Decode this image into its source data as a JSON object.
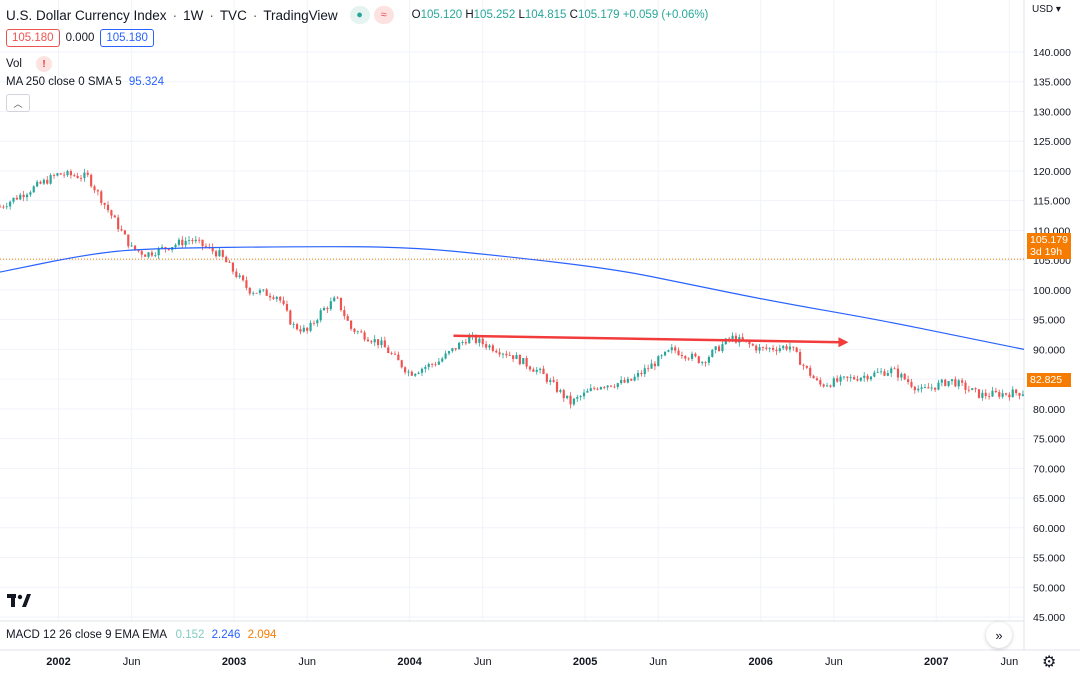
{
  "header": {
    "title": "U.S. Dollar Currency Index",
    "interval": "1W",
    "source": "TVC",
    "platform": "TradingView",
    "ohlc": {
      "open_key": "O",
      "open": "105.120",
      "high_key": "H",
      "high": "105.252",
      "low_key": "L",
      "low": "104.815",
      "close_key": "C",
      "close": "105.179",
      "change": "+0.059 (+0.06%)"
    },
    "sell_price": "105.180",
    "spread": "0.000",
    "buy_price": "105.180"
  },
  "indicators": {
    "vol_label": "Vol",
    "vol_warning": "!",
    "ma_label": "MA 250 close 0 SMA 5",
    "ma_value": "95.324",
    "macd_label": "MACD 12 26 close 9 EMA EMA",
    "macd_hist": "0.152",
    "macd_line": "2.246",
    "macd_signal": "2.094"
  },
  "axis": {
    "currency": "USD",
    "y_ticks": [
      "45.000",
      "50.000",
      "55.000",
      "60.000",
      "65.000",
      "70.000",
      "75.000",
      "80.000",
      "85.000",
      "90.000",
      "95.000",
      "100.000",
      "105.000",
      "110.000",
      "115.000",
      "120.000",
      "125.000",
      "130.000",
      "135.000",
      "140.000"
    ],
    "x_labels": [
      "2002",
      "Jun",
      "2003",
      "Jun",
      "2004",
      "Jun",
      "2005",
      "Jun",
      "2006",
      "Jun",
      "2007",
      "Jun"
    ],
    "current_price_label": "105.179",
    "countdown": "3d 19h",
    "ma_price_label": "82.825"
  },
  "colors": {
    "up": "#26a69a",
    "down": "#ef5350",
    "ma_line": "#2962ff",
    "arrow": "#f23b3b",
    "last_price": "#f57c00"
  },
  "chart_data": {
    "type": "candlestick",
    "title": "U.S. Dollar Currency Index",
    "interval": "1W",
    "ylim": [
      45,
      140
    ],
    "x_range": [
      "2001-09",
      "2007-07"
    ],
    "anchors": [
      {
        "t": "2001-09",
        "close": 114
      },
      {
        "t": "2002-01",
        "close": 119.5
      },
      {
        "t": "2002-03",
        "close": 119
      },
      {
        "t": "2002-04",
        "close": 115
      },
      {
        "t": "2002-06",
        "close": 107
      },
      {
        "t": "2002-07",
        "close": 106
      },
      {
        "t": "2002-10",
        "close": 108.5
      },
      {
        "t": "2002-12",
        "close": 106
      },
      {
        "t": "2003-02",
        "close": 100
      },
      {
        "t": "2003-04",
        "close": 99
      },
      {
        "t": "2003-05",
        "close": 94
      },
      {
        "t": "2003-06",
        "close": 93
      },
      {
        "t": "2003-07",
        "close": 96.5
      },
      {
        "t": "2003-08",
        "close": 98.5
      },
      {
        "t": "2003-09",
        "close": 93.5
      },
      {
        "t": "2003-11",
        "close": 91
      },
      {
        "t": "2004-01",
        "close": 86
      },
      {
        "t": "2004-03",
        "close": 88
      },
      {
        "t": "2004-05",
        "close": 92
      },
      {
        "t": "2004-08",
        "close": 89
      },
      {
        "t": "2004-10",
        "close": 86
      },
      {
        "t": "2004-12",
        "close": 81
      },
      {
        "t": "2005-02",
        "close": 84
      },
      {
        "t": "2005-04",
        "close": 84.5
      },
      {
        "t": "2005-07",
        "close": 90
      },
      {
        "t": "2005-09",
        "close": 88
      },
      {
        "t": "2005-11",
        "close": 92
      },
      {
        "t": "2006-01",
        "close": 90
      },
      {
        "t": "2006-03",
        "close": 90.5
      },
      {
        "t": "2006-04",
        "close": 87
      },
      {
        "t": "2006-05",
        "close": 84
      },
      {
        "t": "2006-08",
        "close": 85.5
      },
      {
        "t": "2006-10",
        "close": 86.5
      },
      {
        "t": "2006-12",
        "close": 83
      },
      {
        "t": "2007-02",
        "close": 84.8
      },
      {
        "t": "2007-04",
        "close": 82.3
      },
      {
        "t": "2007-07",
        "close": 82.8
      }
    ],
    "ma_series": {
      "name": "MA 250 close 0 SMA 5",
      "points": [
        {
          "t": "2001-09",
          "v": 103
        },
        {
          "t": "2002-03",
          "v": 106
        },
        {
          "t": "2002-07",
          "v": 107
        },
        {
          "t": "2003-06",
          "v": 107.3
        },
        {
          "t": "2004-01",
          "v": 107.2
        },
        {
          "t": "2004-07",
          "v": 105.8
        },
        {
          "t": "2005-03",
          "v": 103.5
        },
        {
          "t": "2005-08",
          "v": 101
        },
        {
          "t": "2006-02",
          "v": 98
        },
        {
          "t": "2006-09",
          "v": 95
        },
        {
          "t": "2007-03",
          "v": 92
        },
        {
          "t": "2007-07",
          "v": 90
        }
      ]
    },
    "annotation_arrow": {
      "from": {
        "t": "2004-04",
        "v": 92.3
      },
      "to": {
        "t": "2006-07",
        "v": 91.2
      }
    },
    "current_price_line": 105.179
  }
}
